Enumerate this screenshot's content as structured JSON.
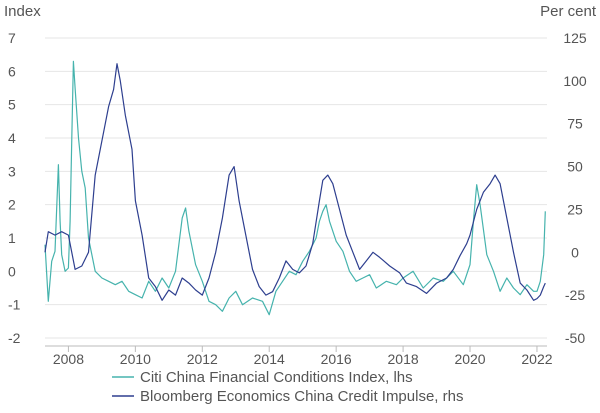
{
  "chart_data": {
    "type": "line",
    "left_axis": {
      "unit_label": "Index",
      "ylim": [
        -2,
        7
      ],
      "ticks": [
        7,
        6,
        5,
        4,
        3,
        2,
        1,
        0,
        -1,
        -2
      ]
    },
    "right_axis": {
      "unit_label": "Per cent",
      "ylim": [
        -50,
        125
      ],
      "ticks": [
        125,
        100,
        75,
        50,
        25,
        0,
        -25,
        -50
      ]
    },
    "x_axis": {
      "xlim": [
        2007.3,
        2022.3
      ],
      "ticks": [
        "2008",
        "2010",
        "2012",
        "2014",
        "2016",
        "2018",
        "2020",
        "2022"
      ]
    },
    "grid": "horizontal",
    "legend_position": "bottom",
    "series": [
      {
        "name": "Citi China Financial Conditions Index, lhs",
        "axis": "left",
        "color": "#46b3ad",
        "x": [
          2007.3,
          2007.4,
          2007.5,
          2007.6,
          2007.7,
          2007.75,
          2007.8,
          2007.9,
          2008.0,
          2008.05,
          2008.1,
          2008.15,
          2008.2,
          2008.3,
          2008.4,
          2008.5,
          2008.6,
          2008.8,
          2009.0,
          2009.2,
          2009.4,
          2009.6,
          2009.8,
          2010.0,
          2010.2,
          2010.4,
          2010.6,
          2010.8,
          2011.0,
          2011.2,
          2011.4,
          2011.5,
          2011.6,
          2011.8,
          2012.0,
          2012.2,
          2012.4,
          2012.6,
          2012.8,
          2013.0,
          2013.2,
          2013.5,
          2013.8,
          2014.0,
          2014.2,
          2014.4,
          2014.6,
          2014.8,
          2015.0,
          2015.2,
          2015.4,
          2015.5,
          2015.6,
          2015.7,
          2015.8,
          2016.0,
          2016.2,
          2016.4,
          2016.6,
          2016.8,
          2017.0,
          2017.2,
          2017.5,
          2017.8,
          2018.0,
          2018.3,
          2018.6,
          2018.9,
          2019.2,
          2019.5,
          2019.8,
          2020.0,
          2020.1,
          2020.2,
          2020.3,
          2020.5,
          2020.7,
          2020.9,
          2021.1,
          2021.3,
          2021.5,
          2021.7,
          2021.9,
          2022.0,
          2022.1,
          2022.2,
          2022.25
        ],
        "y": [
          0.8,
          -0.9,
          0.3,
          0.6,
          3.2,
          1.5,
          0.5,
          0.0,
          0.1,
          1.5,
          4.0,
          6.3,
          5.5,
          4.0,
          3.0,
          2.5,
          1.0,
          0.0,
          -0.2,
          -0.3,
          -0.4,
          -0.3,
          -0.6,
          -0.7,
          -0.8,
          -0.3,
          -0.6,
          -0.2,
          -0.5,
          0.0,
          1.6,
          1.9,
          1.2,
          0.2,
          -0.3,
          -0.9,
          -1.0,
          -1.2,
          -0.8,
          -0.6,
          -1.0,
          -0.8,
          -0.9,
          -1.3,
          -0.6,
          -0.3,
          0.0,
          -0.1,
          0.3,
          0.6,
          1.0,
          1.5,
          1.8,
          2.0,
          1.5,
          0.9,
          0.6,
          0.0,
          -0.3,
          -0.2,
          -0.1,
          -0.5,
          -0.3,
          -0.4,
          -0.2,
          0.0,
          -0.5,
          -0.2,
          -0.3,
          0.0,
          -0.4,
          0.2,
          1.5,
          2.6,
          2.0,
          0.5,
          0.0,
          -0.6,
          -0.2,
          -0.5,
          -0.7,
          -0.4,
          -0.6,
          -0.6,
          -0.3,
          0.5,
          1.8
        ]
      },
      {
        "name": "Bloomberg Economics China Credit Impulse, rhs",
        "axis": "right",
        "color": "#2e3f8f",
        "x": [
          2007.3,
          2007.4,
          2007.6,
          2007.8,
          2008.0,
          2008.2,
          2008.4,
          2008.6,
          2008.8,
          2009.0,
          2009.2,
          2009.35,
          2009.45,
          2009.55,
          2009.7,
          2009.9,
          2010.0,
          2010.2,
          2010.4,
          2010.6,
          2010.8,
          2011.0,
          2011.2,
          2011.4,
          2011.6,
          2011.8,
          2012.0,
          2012.2,
          2012.4,
          2012.6,
          2012.8,
          2012.95,
          2013.1,
          2013.3,
          2013.5,
          2013.7,
          2013.9,
          2014.1,
          2014.3,
          2014.5,
          2014.7,
          2014.9,
          2015.1,
          2015.3,
          2015.5,
          2015.6,
          2015.75,
          2015.9,
          2016.1,
          2016.3,
          2016.5,
          2016.7,
          2016.9,
          2017.1,
          2017.3,
          2017.6,
          2017.9,
          2018.1,
          2018.4,
          2018.7,
          2019.0,
          2019.3,
          2019.5,
          2019.7,
          2019.9,
          2020.0,
          2020.2,
          2020.4,
          2020.6,
          2020.75,
          2020.9,
          2021.1,
          2021.3,
          2021.5,
          2021.7,
          2021.9,
          2022.0,
          2022.1,
          2022.2,
          2022.25
        ],
        "y": [
          0,
          12,
          10,
          12,
          10,
          -10,
          -8,
          0,
          45,
          65,
          85,
          95,
          110,
          100,
          80,
          60,
          30,
          10,
          -15,
          -20,
          -28,
          -22,
          -25,
          -15,
          -18,
          -22,
          -25,
          -15,
          0,
          20,
          45,
          50,
          30,
          10,
          -10,
          -20,
          -25,
          -23,
          -15,
          -5,
          -10,
          -12,
          -8,
          5,
          30,
          42,
          45,
          40,
          25,
          10,
          0,
          -10,
          -5,
          0,
          -3,
          -8,
          -12,
          -18,
          -20,
          -24,
          -18,
          -15,
          -10,
          -2,
          5,
          10,
          25,
          35,
          40,
          45,
          40,
          20,
          0,
          -18,
          -22,
          -28,
          -27,
          -25,
          -20,
          -18
        ]
      }
    ]
  }
}
